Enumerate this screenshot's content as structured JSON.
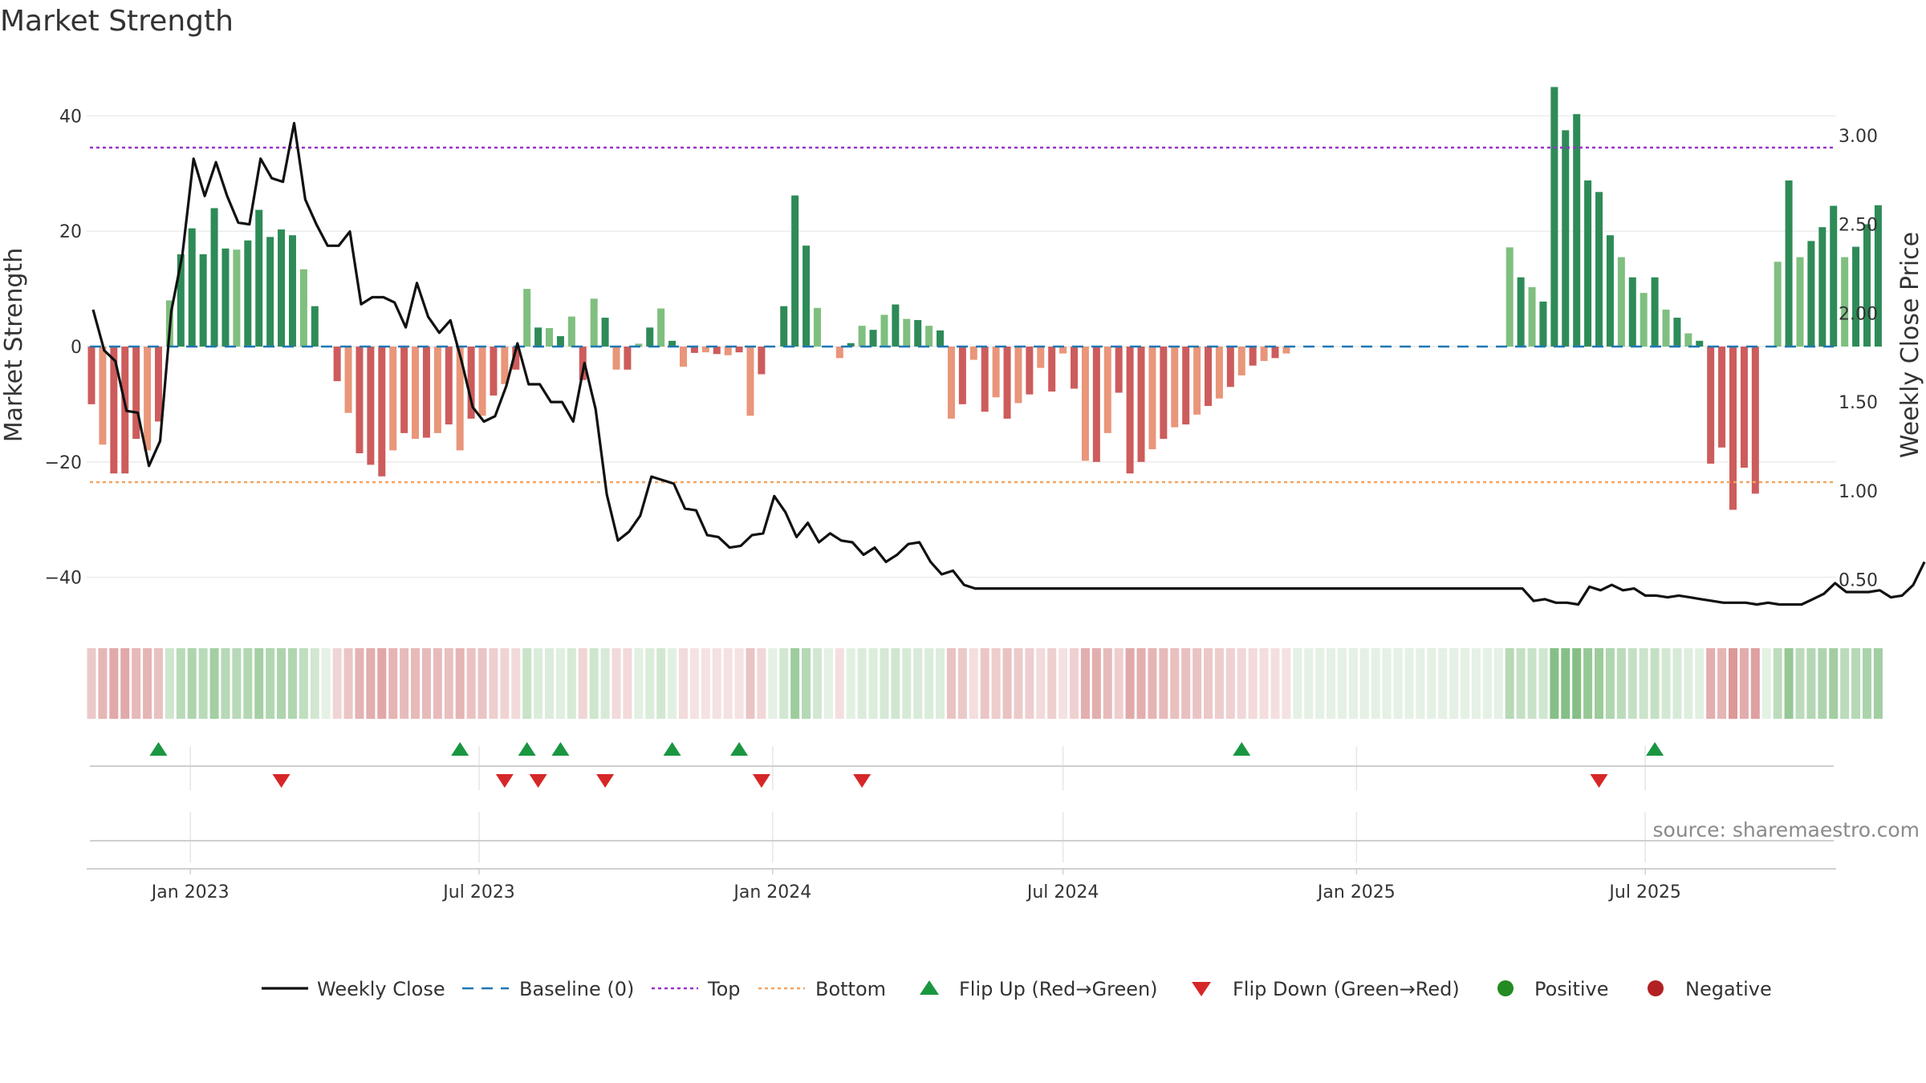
{
  "title": "Market Strength",
  "source": "source: sharemaestro.com",
  "colors": {
    "strong_green": "#2e8b57",
    "light_green": "#7fbf7f",
    "strong_red": "#cd5c5c",
    "light_red": "#e9967a",
    "close_line": "#111111",
    "baseline": "#1f77b4",
    "top": "#9932cc",
    "bottom": "#f4a460",
    "flip_up": "#1a9641",
    "flip_down": "#d62728",
    "positive": "#228b22",
    "negative": "#b22222"
  },
  "legend": [
    {
      "key": "close",
      "label": "Weekly Close"
    },
    {
      "key": "baseline",
      "label": "Baseline (0)"
    },
    {
      "key": "top",
      "label": "Top"
    },
    {
      "key": "bottom",
      "label": "Bottom"
    },
    {
      "key": "flip_up",
      "label": "Flip Up (Red→Green)"
    },
    {
      "key": "flip_down",
      "label": "Flip Down (Green→Red)"
    },
    {
      "key": "positive",
      "label": "Positive"
    },
    {
      "key": "negative",
      "label": "Negative"
    }
  ],
  "chart_data": {
    "type": "bar",
    "start_date": "2022-10-31",
    "interval": "weekly",
    "ylabel_left": "Market Strength",
    "ylabel_right": "Weekly Close Price",
    "ylim_left": [
      -48,
      50
    ],
    "ylim_right": [
      0.28,
      3.45
    ],
    "yticks_left": [
      40,
      20,
      0,
      -20,
      -40
    ],
    "yticks_left_labels": [
      "40",
      "20",
      "0",
      "−20",
      "−40"
    ],
    "yticks_right": [
      3.0,
      2.5,
      2.0,
      1.5,
      1.0,
      0.5
    ],
    "yticks_right_labels": [
      "3.00",
      "2.50",
      "2.00",
      "1.50",
      "1.00",
      "0.50"
    ],
    "x_ticks": [
      {
        "label": "Jan 2023",
        "date": "2023-01-01"
      },
      {
        "label": "Jul 2023",
        "date": "2023-07-01"
      },
      {
        "label": "Jan 2024",
        "date": "2024-01-01"
      },
      {
        "label": "Jul 2024",
        "date": "2024-07-01"
      },
      {
        "label": "Jan 2025",
        "date": "2025-01-01"
      },
      {
        "label": "Jul 2025",
        "date": "2025-07-01"
      }
    ],
    "top_level": 34.5,
    "bottom_level": -23.5,
    "baseline": 0,
    "grid": true,
    "legend_position": "bottom",
    "market_strength": [
      -10,
      -17,
      -22,
      -22,
      -16,
      -18,
      -13,
      8,
      16,
      20.5,
      16,
      24,
      17,
      16.8,
      18.4,
      23.7,
      19,
      20.3,
      19.3,
      13.4,
      7,
      0,
      -6,
      -11.5,
      -18.5,
      -20.5,
      -22.5,
      -18,
      -15,
      -16,
      -15.8,
      -15,
      -13.5,
      -18,
      -12.5,
      -12,
      -8.5,
      -6.5,
      -4,
      10,
      3.3,
      3.2,
      1.8,
      5.2,
      -5.8,
      8.3,
      5,
      -4,
      -4,
      0.5,
      3.3,
      6.6,
      1,
      -3.5,
      -1.1,
      -1,
      -1.3,
      -1.5,
      -1,
      -12,
      -4.8,
      0,
      7,
      26.2,
      17.5,
      6.7,
      0,
      -2,
      0.6,
      3.6,
      2.9,
      5.5,
      7.3,
      4.8,
      4.6,
      3.6,
      2.8,
      -12.5,
      -10,
      -2.3,
      -11.3,
      -8.8,
      -12.5,
      -9.8,
      -8.3,
      -3.7,
      -7.8,
      -1.2,
      -7.3,
      -19.8,
      -20,
      -15,
      -8,
      -22,
      -20,
      -17.8,
      -16,
      -14,
      -13.5,
      -11.8,
      -10.3,
      -9,
      -7,
      -5,
      -3.3,
      -2.5,
      -2,
      -1.2,
      0,
      0,
      0,
      0,
      0,
      0,
      0,
      0,
      0,
      0,
      0,
      0,
      0,
      0,
      0,
      0,
      0,
      0,
      0,
      17.2,
      12,
      10.3,
      7.8,
      45,
      37.5,
      40.3,
      28.8,
      26.8,
      19.3,
      15.5,
      12,
      9.3,
      12,
      6.4,
      5,
      2.3,
      1,
      -20.3,
      -17.5,
      -28.3,
      -21,
      -25.5,
      0,
      14.7,
      28.8,
      15.5,
      18.3,
      20.7,
      24.4,
      15.5,
      17.3,
      21.2,
      24.5
    ],
    "weekly_close": [
      2.02,
      1.79,
      1.73,
      1.45,
      1.44,
      1.14,
      1.28,
      2.01,
      2.33,
      2.87,
      2.66,
      2.85,
      2.66,
      2.51,
      2.5,
      2.87,
      2.76,
      2.74,
      3.07,
      2.64,
      2.5,
      2.38,
      2.38,
      2.46,
      2.05,
      2.09,
      2.09,
      2.06,
      1.92,
      2.17,
      1.98,
      1.89,
      1.96,
      1.73,
      1.47,
      1.39,
      1.42,
      1.59,
      1.83,
      1.6,
      1.6,
      1.5,
      1.5,
      1.39,
      1.72,
      1.46,
      0.98,
      0.72,
      0.77,
      0.86,
      1.08,
      1.06,
      1.04,
      0.9,
      0.89,
      0.75,
      0.74,
      0.68,
      0.69,
      0.75,
      0.76,
      0.97,
      0.88,
      0.74,
      0.82,
      0.71,
      0.76,
      0.72,
      0.71,
      0.64,
      0.68,
      0.6,
      0.64,
      0.7,
      0.71,
      0.6,
      0.53,
      0.55,
      0.47,
      0.45,
      0.45,
      0.45,
      0.45,
      0.45,
      0.45,
      0.45,
      0.45,
      0.45,
      0.45,
      0.45,
      0.45,
      0.45,
      0.45,
      0.45,
      0.45,
      0.45,
      0.45,
      0.45,
      0.45,
      0.45,
      0.45,
      0.45,
      0.45,
      0.45,
      0.45,
      0.45,
      0.45,
      0.45,
      0.45,
      0.45,
      0.45,
      0.45,
      0.45,
      0.45,
      0.45,
      0.45,
      0.45,
      0.45,
      0.45,
      0.45,
      0.45,
      0.45,
      0.45,
      0.45,
      0.45,
      0.45,
      0.45,
      0.45,
      0.45,
      0.38,
      0.39,
      0.37,
      0.37,
      0.36,
      0.46,
      0.44,
      0.47,
      0.44,
      0.45,
      0.41,
      0.41,
      0.4,
      0.41,
      0.4,
      0.39,
      0.38,
      0.37,
      0.37,
      0.37,
      0.36,
      0.37,
      0.36,
      0.36,
      0.36,
      0.39,
      0.42,
      0.48,
      0.43,
      0.43,
      0.43,
      0.44,
      0.4,
      0.41,
      0.47,
      0.6
    ],
    "flip_up_dates": [
      "2022-12-12",
      "2023-06-19",
      "2023-07-31",
      "2023-08-21",
      "2023-10-30",
      "2023-12-11",
      "2024-10-21",
      "2025-07-07"
    ],
    "flip_down_dates": [
      "2023-02-27",
      "2023-07-17",
      "2023-08-07",
      "2023-09-18",
      "2023-12-25",
      "2024-02-26",
      "2025-06-02"
    ]
  }
}
